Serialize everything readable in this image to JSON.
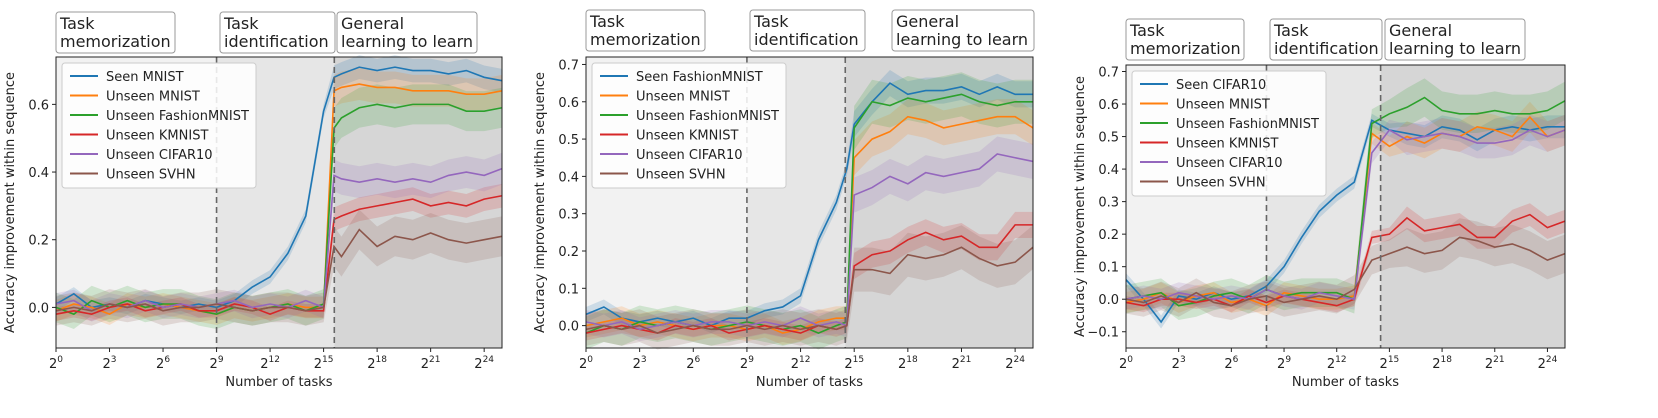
{
  "phase_labels": [
    [
      "Task",
      "memorization"
    ],
    [
      "Task",
      "identification"
    ],
    [
      "General",
      "learning to learn"
    ]
  ],
  "xlabel": "Number of tasks",
  "ylabel": "Accuracy improvement within sequence",
  "colors": {
    "blue": "#1f77b4",
    "orange": "#ff7f0e",
    "green": "#2ca02c",
    "red": "#d62728",
    "purple": "#9467bd",
    "brown": "#8c564b",
    "phase1_bg": "#f2f2f2",
    "phase2_bg": "#e6e6e6",
    "phase3_bg": "#d6d6d6"
  },
  "chart_data": [
    {
      "type": "line",
      "xscale": "log2",
      "x": [
        1,
        2,
        4,
        8,
        16,
        32,
        64,
        128,
        256,
        512,
        1024,
        2048,
        4096,
        8192,
        16384,
        32768,
        49152,
        65536,
        131072,
        262144,
        524288,
        1048576,
        2097152,
        4194304,
        8388608,
        16777216,
        33554432
      ],
      "xticks": [
        0,
        3,
        6,
        9,
        12,
        15,
        18,
        21,
        24
      ],
      "xlim": [
        0,
        25
      ],
      "ylim": [
        -0.12,
        0.74
      ],
      "yticks": [
        0.0,
        0.2,
        0.4,
        0.6
      ],
      "ytick_labels": [
        "0.0",
        "0.2",
        "0.4",
        "0.6"
      ],
      "phase_bounds": [
        9,
        15.6
      ],
      "series": [
        {
          "name": "Seen MNIST",
          "color": "blue",
          "values": [
            0.01,
            0.04,
            0.0,
            0.01,
            0.0,
            0.02,
            0.01,
            0.0,
            0.01,
            0.0,
            0.02,
            0.06,
            0.09,
            0.16,
            0.27,
            0.58,
            0.68,
            0.69,
            0.71,
            0.7,
            0.71,
            0.7,
            0.7,
            0.69,
            0.7,
            0.68,
            0.67
          ]
        },
        {
          "name": "Unseen MNIST",
          "color": "orange",
          "values": [
            -0.01,
            0.01,
            0.0,
            -0.02,
            0.01,
            0.0,
            0.01,
            0.0,
            -0.01,
            -0.02,
            0.0,
            -0.01,
            0.0,
            0.01,
            0.0,
            0.0,
            0.64,
            0.65,
            0.66,
            0.65,
            0.65,
            0.64,
            0.64,
            0.64,
            0.63,
            0.63,
            0.64
          ]
        },
        {
          "name": "Unseen FashionMNIST",
          "color": "green",
          "values": [
            0.0,
            -0.02,
            0.02,
            0.0,
            0.02,
            0.0,
            0.01,
            0.01,
            -0.01,
            -0.02,
            0.0,
            -0.01,
            0.0,
            0.01,
            -0.01,
            0.01,
            0.53,
            0.56,
            0.59,
            0.6,
            0.59,
            0.6,
            0.6,
            0.6,
            0.58,
            0.58,
            0.59
          ]
        },
        {
          "name": "Unseen KMNIST",
          "color": "red",
          "values": [
            -0.02,
            -0.01,
            -0.02,
            0.0,
            0.01,
            -0.01,
            0.0,
            0.01,
            -0.01,
            -0.01,
            0.01,
            0.0,
            -0.02,
            0.0,
            -0.01,
            -0.01,
            0.26,
            0.27,
            0.29,
            0.3,
            0.31,
            0.32,
            0.3,
            0.31,
            0.3,
            0.32,
            0.33
          ]
        },
        {
          "name": "Unseen CIFAR10",
          "color": "purple",
          "values": [
            0.01,
            0.02,
            -0.01,
            0.01,
            0.0,
            0.02,
            0.0,
            0.01,
            0.0,
            0.01,
            0.02,
            0.0,
            0.01,
            0.0,
            0.02,
            0.0,
            0.39,
            0.38,
            0.37,
            0.38,
            0.37,
            0.38,
            0.37,
            0.39,
            0.4,
            0.39,
            0.41
          ]
        },
        {
          "name": "Unseen SVHN",
          "color": "brown",
          "values": [
            -0.01,
            0.0,
            -0.01,
            0.01,
            0.0,
            0.01,
            -0.01,
            0.0,
            0.0,
            0.01,
            0.0,
            -0.01,
            0.0,
            0.0,
            -0.01,
            0.0,
            0.18,
            0.15,
            0.23,
            0.18,
            0.21,
            0.2,
            0.22,
            0.2,
            0.19,
            0.2,
            0.21
          ]
        }
      ]
    },
    {
      "type": "line",
      "xscale": "log2",
      "x": [
        1,
        2,
        4,
        8,
        16,
        32,
        64,
        128,
        256,
        512,
        1024,
        2048,
        4096,
        8192,
        16384,
        24576,
        32768,
        65536,
        131072,
        262144,
        524288,
        1048576,
        2097152,
        4194304,
        8388608,
        16777216,
        33554432
      ],
      "xticks": [
        0,
        3,
        6,
        9,
        12,
        15,
        18,
        21,
        24
      ],
      "xlim": [
        0,
        25
      ],
      "ylim": [
        -0.06,
        0.72
      ],
      "yticks": [
        0.0,
        0.1,
        0.2,
        0.3,
        0.4,
        0.5,
        0.6,
        0.7
      ],
      "ytick_labels": [
        "0.0",
        "0.1",
        "0.2",
        "0.3",
        "0.4",
        "0.5",
        "0.6",
        "0.7"
      ],
      "phase_bounds": [
        9,
        14.5
      ],
      "series": [
        {
          "name": "Seen FashionMNIST",
          "color": "blue",
          "values": [
            0.03,
            0.05,
            0.02,
            0.01,
            0.02,
            0.01,
            0.02,
            0.0,
            0.02,
            0.02,
            0.04,
            0.05,
            0.08,
            0.23,
            0.33,
            0.42,
            0.54,
            0.6,
            0.65,
            0.62,
            0.63,
            0.63,
            0.64,
            0.62,
            0.64,
            0.62,
            0.62
          ]
        },
        {
          "name": "Unseen MNIST",
          "color": "orange",
          "values": [
            0.0,
            0.01,
            0.02,
            0.0,
            0.01,
            0.0,
            -0.01,
            0.0,
            0.0,
            -0.01,
            0.0,
            -0.02,
            -0.01,
            0.01,
            0.02,
            0.02,
            0.45,
            0.5,
            0.52,
            0.56,
            0.55,
            0.53,
            0.54,
            0.55,
            0.56,
            0.56,
            0.53
          ]
        },
        {
          "name": "Unseen FashionMNIST",
          "color": "green",
          "values": [
            -0.02,
            0.0,
            -0.01,
            0.01,
            0.0,
            0.01,
            0.0,
            -0.01,
            0.0,
            0.01,
            0.0,
            -0.01,
            0.0,
            -0.02,
            0.0,
            0.01,
            0.53,
            0.6,
            0.59,
            0.61,
            0.6,
            0.61,
            0.62,
            0.6,
            0.59,
            0.6,
            0.6
          ]
        },
        {
          "name": "Unseen KMNIST",
          "color": "red",
          "values": [
            -0.02,
            -0.01,
            0.0,
            -0.01,
            -0.02,
            0.0,
            -0.01,
            0.0,
            -0.02,
            -0.01,
            0.0,
            -0.01,
            -0.02,
            0.0,
            -0.01,
            0.0,
            0.16,
            0.19,
            0.2,
            0.23,
            0.25,
            0.23,
            0.24,
            0.21,
            0.21,
            0.27,
            0.27
          ]
        },
        {
          "name": "Unseen CIFAR10",
          "color": "purple",
          "values": [
            0.01,
            0.0,
            0.01,
            -0.01,
            0.0,
            0.01,
            0.0,
            0.01,
            0.01,
            0.0,
            0.01,
            0.0,
            0.02,
            0.0,
            0.01,
            0.0,
            0.35,
            0.37,
            0.4,
            0.38,
            0.41,
            0.4,
            0.41,
            0.42,
            0.46,
            0.45,
            0.44
          ]
        },
        {
          "name": "Unseen SVHN",
          "color": "brown",
          "values": [
            -0.01,
            0.0,
            -0.01,
            0.0,
            -0.02,
            -0.01,
            0.0,
            -0.01,
            -0.01,
            0.0,
            -0.01,
            0.0,
            -0.01,
            0.0,
            -0.01,
            0.0,
            0.15,
            0.15,
            0.14,
            0.19,
            0.18,
            0.19,
            0.21,
            0.18,
            0.16,
            0.17,
            0.21
          ]
        }
      ]
    },
    {
      "type": "line",
      "xscale": "log2",
      "x": [
        1,
        2,
        4,
        8,
        16,
        32,
        64,
        128,
        256,
        512,
        1024,
        2048,
        4096,
        8192,
        16384,
        32768,
        65536,
        131072,
        262144,
        524288,
        1048576,
        2097152,
        4194304,
        8388608,
        16777216,
        33554432
      ],
      "xticks": [
        0,
        3,
        6,
        9,
        12,
        15,
        18,
        21,
        24
      ],
      "xlim": [
        0,
        25
      ],
      "ylim": [
        -0.15,
        0.72
      ],
      "yticks": [
        -0.1,
        0.0,
        0.1,
        0.2,
        0.3,
        0.4,
        0.5,
        0.6,
        0.7
      ],
      "ytick_labels": [
        "−0.1",
        "0.0",
        "0.1",
        "0.2",
        "0.3",
        "0.4",
        "0.5",
        "0.6",
        "0.7"
      ],
      "phase_bounds": [
        8,
        14.5
      ],
      "series": [
        {
          "name": "Seen CIFAR10",
          "color": "blue",
          "values": [
            0.06,
            0.0,
            -0.07,
            0.01,
            0.0,
            0.02,
            0.0,
            0.01,
            0.04,
            0.1,
            0.19,
            0.27,
            0.32,
            0.36,
            0.55,
            0.52,
            0.51,
            0.5,
            0.53,
            0.52,
            0.49,
            0.52,
            0.53,
            0.52,
            0.53,
            0.53
          ]
        },
        {
          "name": "Unseen MNIST",
          "color": "orange",
          "values": [
            -0.01,
            0.0,
            0.02,
            -0.01,
            0.01,
            0.02,
            -0.01,
            0.0,
            -0.02,
            0.02,
            0.01,
            0.0,
            0.0,
            0.01,
            0.51,
            0.47,
            0.5,
            0.48,
            0.51,
            0.5,
            0.53,
            0.52,
            0.5,
            0.56,
            0.5,
            0.52
          ]
        },
        {
          "name": "Unseen FashionMNIST",
          "color": "green",
          "values": [
            0.0,
            0.01,
            0.02,
            -0.02,
            -0.01,
            0.01,
            0.02,
            0.0,
            0.03,
            0.01,
            0.02,
            0.02,
            0.02,
            0.0,
            0.54,
            0.57,
            0.59,
            0.62,
            0.58,
            0.57,
            0.57,
            0.58,
            0.57,
            0.57,
            0.58,
            0.61
          ]
        },
        {
          "name": "Unseen KMNIST",
          "color": "red",
          "values": [
            -0.01,
            -0.02,
            0.0,
            0.0,
            -0.01,
            0.0,
            -0.02,
            0.01,
            -0.01,
            0.01,
            0.0,
            -0.01,
            -0.02,
            0.0,
            0.19,
            0.2,
            0.25,
            0.21,
            0.22,
            0.23,
            0.19,
            0.19,
            0.24,
            0.26,
            0.22,
            0.24
          ]
        },
        {
          "name": "Unseen CIFAR10",
          "color": "purple",
          "values": [
            0.0,
            0.01,
            0.0,
            0.02,
            0.01,
            0.0,
            0.01,
            0.0,
            0.03,
            0.01,
            0.0,
            0.02,
            0.01,
            0.0,
            0.45,
            0.52,
            0.49,
            0.5,
            0.51,
            0.5,
            0.48,
            0.48,
            0.49,
            0.52,
            0.5,
            0.52
          ]
        },
        {
          "name": "Unseen SVHN",
          "color": "brown",
          "values": [
            0.0,
            -0.01,
            0.01,
            -0.01,
            0.02,
            -0.01,
            -0.02,
            0.0,
            0.01,
            -0.01,
            0.0,
            0.01,
            0.0,
            0.03,
            0.12,
            0.14,
            0.16,
            0.14,
            0.15,
            0.19,
            0.18,
            0.16,
            0.17,
            0.15,
            0.12,
            0.14
          ]
        }
      ]
    }
  ]
}
